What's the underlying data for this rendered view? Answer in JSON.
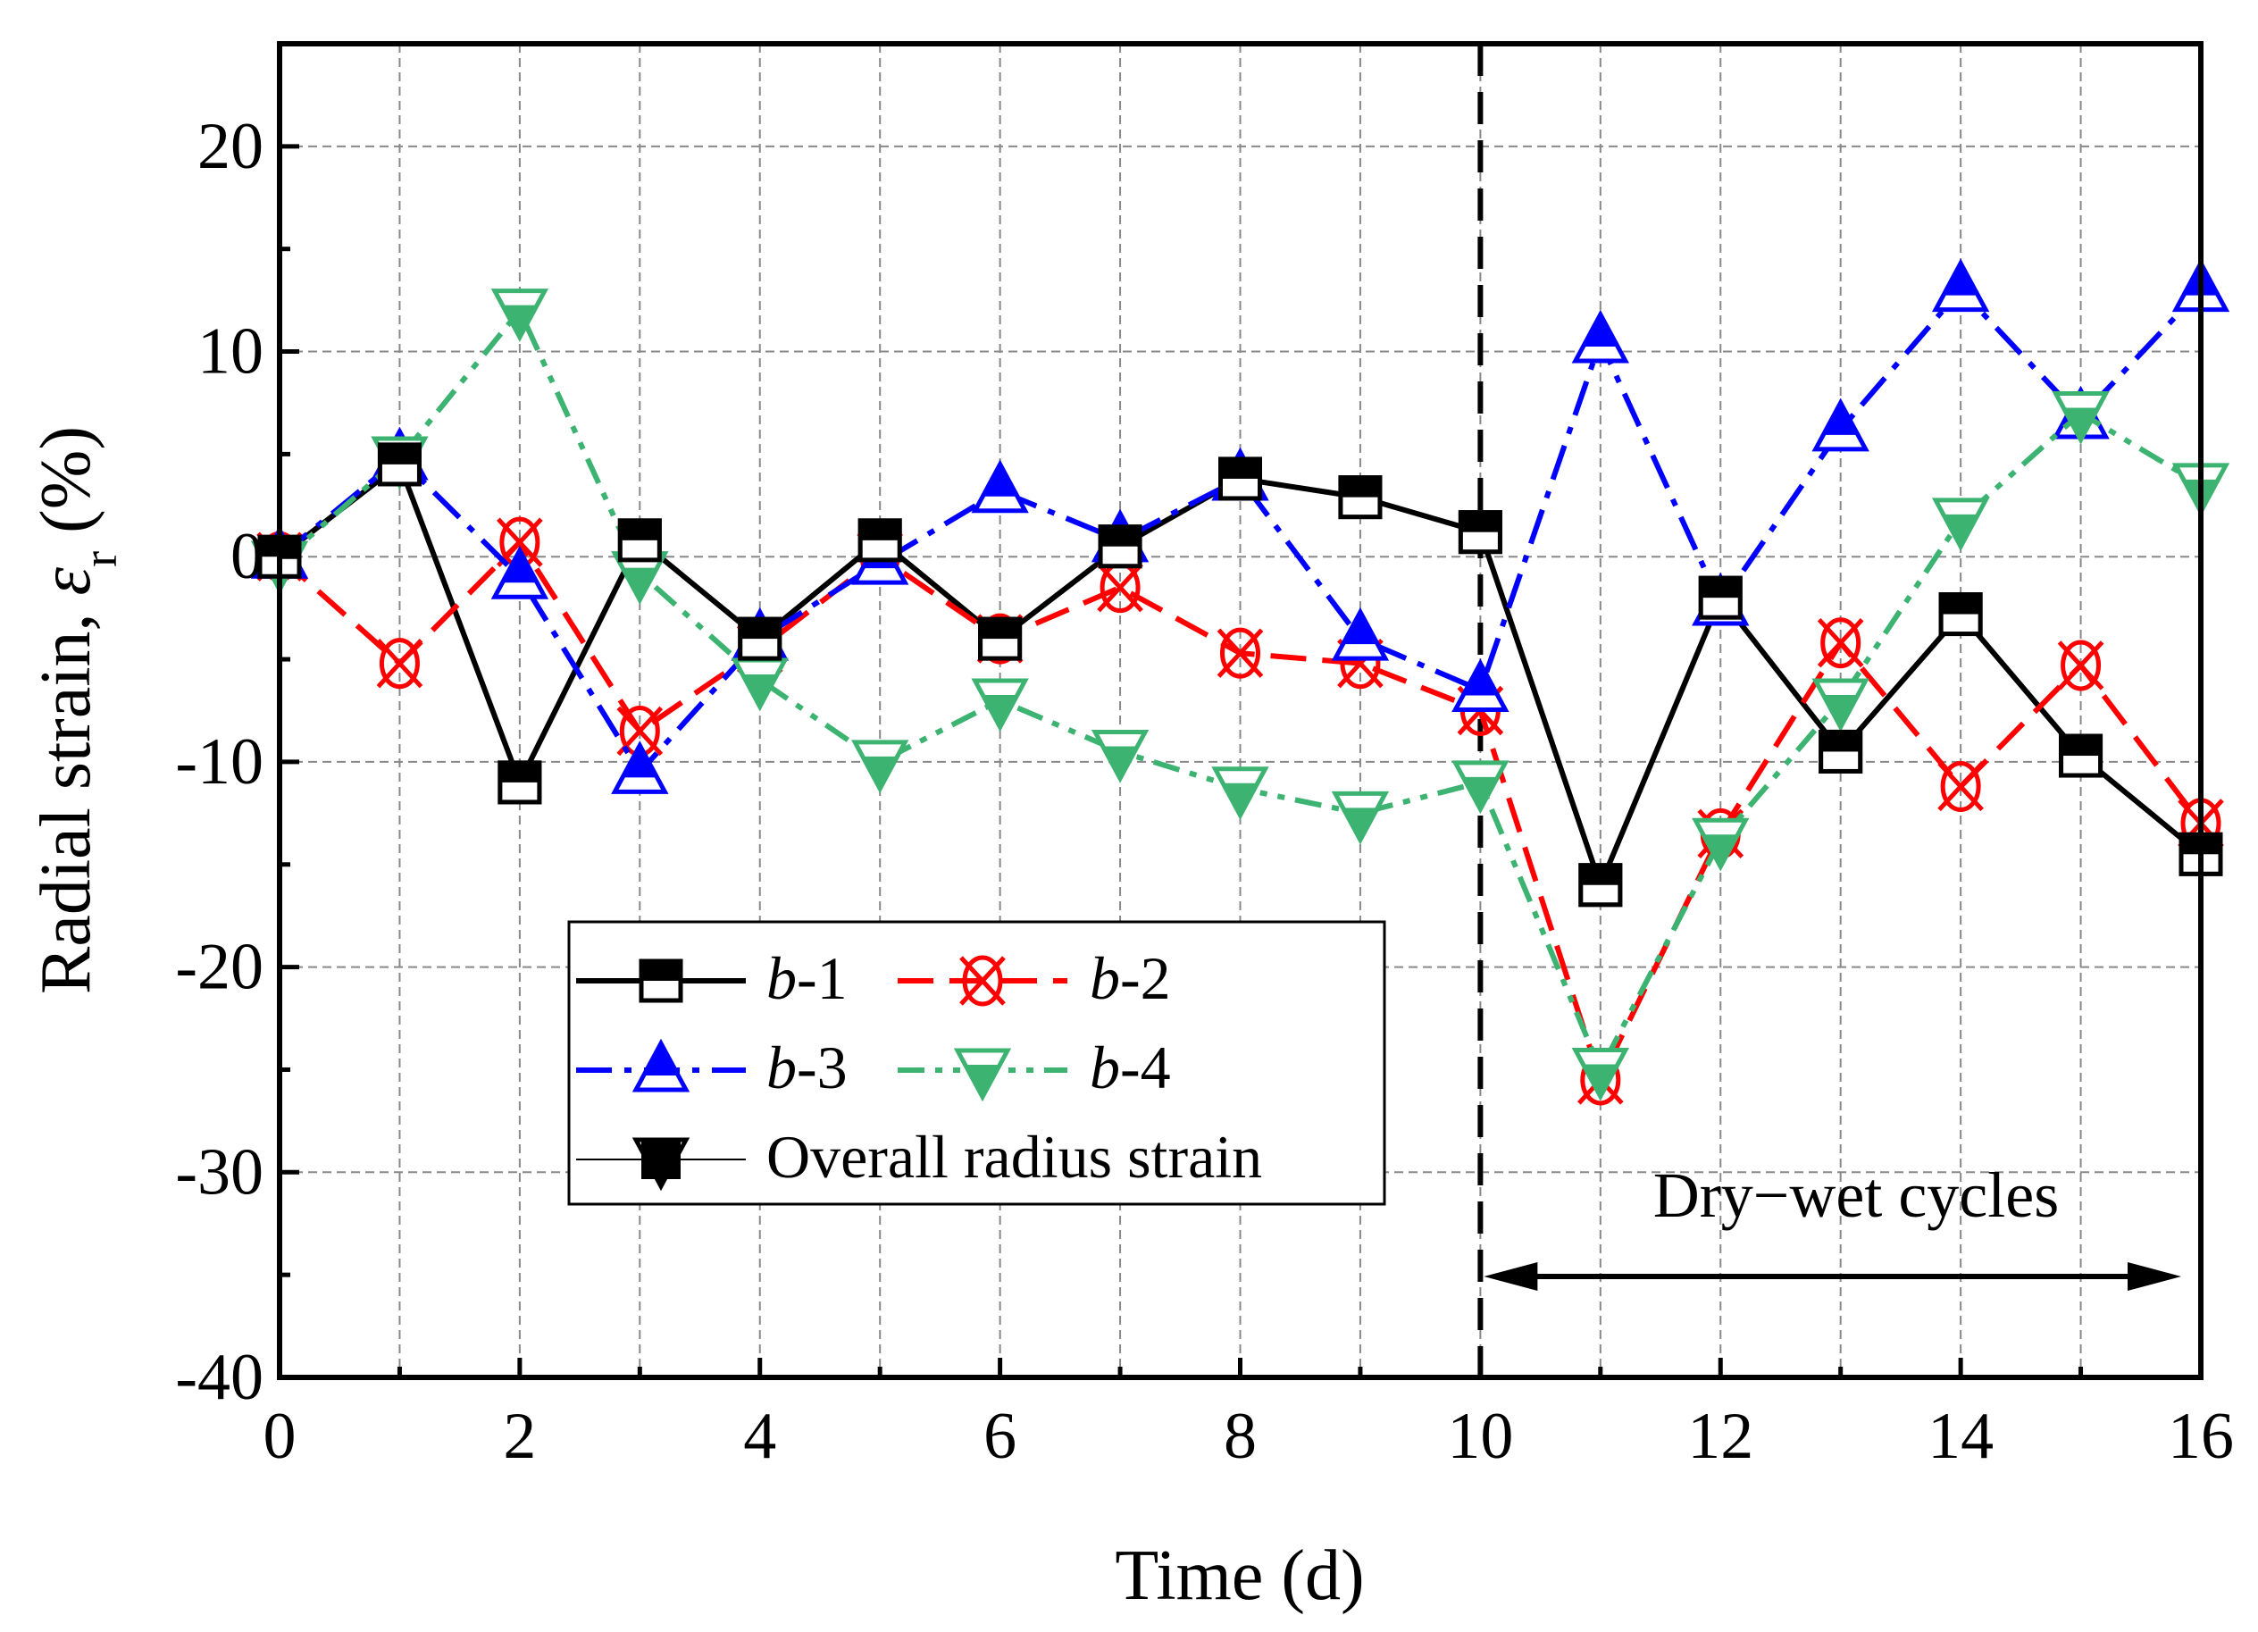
{
  "chart_data": {
    "type": "line",
    "xlabel": "Time (d)",
    "ylabel_prefix": "Radial strain, ",
    "ylabel_symbol": "ε",
    "ylabel_sub": "r",
    "ylabel_suffix": " (%)",
    "xlim": [
      0,
      16
    ],
    "ylim": [
      -40,
      25
    ],
    "xticks": [
      0,
      2,
      4,
      6,
      8,
      10,
      12,
      14,
      16
    ],
    "yticks": [
      -40,
      -30,
      -20,
      -10,
      0,
      10,
      20
    ],
    "grid": true,
    "legend_position": "lower-left",
    "x": [
      0,
      1,
      2,
      3,
      4,
      5,
      6,
      7,
      8,
      9,
      10,
      11,
      12,
      13,
      14,
      15,
      16
    ],
    "series": [
      {
        "name_italic": "b",
        "name_rest": "-1",
        "color": "#000000",
        "dash": "solid",
        "marker": "square",
        "values": [
          0,
          4.5,
          -11,
          0.8,
          -4,
          0.8,
          -4,
          0.5,
          3.8,
          2.9,
          1.2,
          -16,
          -2,
          -9.5,
          -2.8,
          -9.7,
          -14.5
        ]
      },
      {
        "name_italic": "b",
        "name_rest": "-2",
        "color": "#ff0000",
        "dash": "dash",
        "marker": "circle-x",
        "values": [
          0,
          -5.2,
          0.7,
          -8.5,
          -4.5,
          0,
          -4,
          -1.5,
          -4.7,
          -5.2,
          -7.5,
          -25.5,
          -13.5,
          -4.2,
          -11.2,
          -5.3,
          -13
        ]
      },
      {
        "name_italic": "b",
        "name_rest": "-3",
        "color": "#0000ff",
        "dash": "dashdot",
        "marker": "triangle-up",
        "values": [
          0,
          4.8,
          -1,
          -10.5,
          -4,
          -0.3,
          3.2,
          0.8,
          3.8,
          -4,
          -6.5,
          10.5,
          -2.3,
          6.2,
          13,
          6.8,
          13
        ]
      },
      {
        "name_italic": "b",
        "name_rest": "-4",
        "color": "#3cb371",
        "dash": "dashdotdot",
        "marker": "triangle-down",
        "values": [
          -0.3,
          4.8,
          12,
          -0.8,
          -6,
          -10,
          -7,
          -9.5,
          -11.3,
          -12.5,
          -11,
          -25,
          -13.8,
          -7,
          1.8,
          7,
          3.5
        ]
      },
      {
        "name": "Overall radius strain",
        "color": "#000000",
        "dash": "solid-thin",
        "marker": "square-filled",
        "values": [
          0,
          4.5,
          -11,
          0.8,
          -4,
          0.8,
          -4,
          0.5,
          3.8,
          2.9,
          1.2,
          -16,
          -2,
          -9.5,
          -2.8,
          -9.7,
          -14.5
        ]
      }
    ],
    "annotations": {
      "divider_x": 10,
      "region_label": "Dry−wet cycles",
      "region_range": [
        10,
        16
      ]
    }
  }
}
